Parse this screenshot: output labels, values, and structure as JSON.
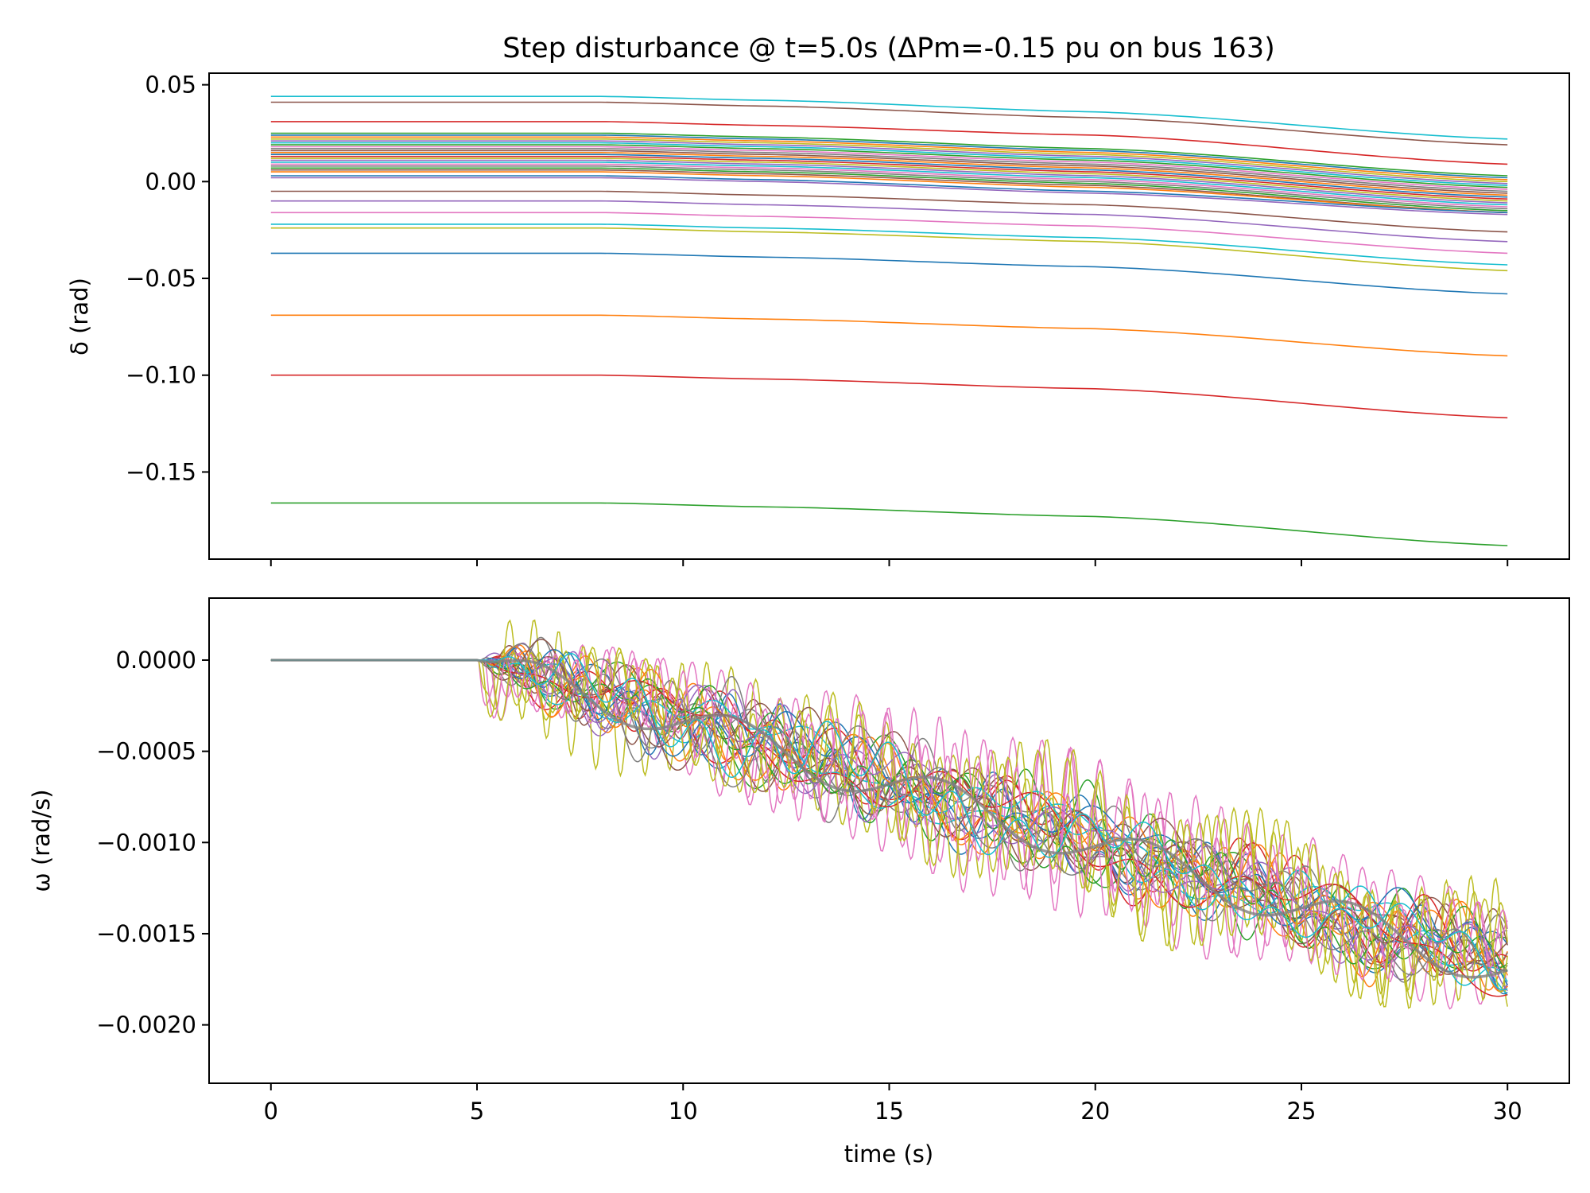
{
  "figure": {
    "title": "Step disturbance @ t=5.0s  (ΔPm=-0.15 pu on bus 163)"
  },
  "colors": [
    "#1f77b4",
    "#ff7f0e",
    "#2ca02c",
    "#d62728",
    "#9467bd",
    "#8c564b",
    "#e377c2",
    "#7f7f7f",
    "#bcbd22",
    "#17becf"
  ],
  "chart_data": [
    {
      "type": "line",
      "panel": "top",
      "ylabel": "δ (rad)",
      "xlabel": "",
      "xlim": [
        -1.5,
        31.5
      ],
      "ylim": [
        -0.195,
        0.056
      ],
      "yticks": [
        0.05,
        0.0,
        -0.05,
        -0.1,
        -0.15
      ],
      "ytick_labels": [
        "0.05",
        "0.00",
        "−0.05",
        "−0.10",
        "−0.15"
      ],
      "xticks": [
        0,
        5,
        10,
        15,
        20,
        25,
        30
      ],
      "show_xtick_labels": false,
      "step_time": 5.0,
      "x": [
        0,
        8,
        12,
        20,
        30
      ],
      "series": [
        {
          "color": "#17becf",
          "values": [
            0.044,
            0.044,
            0.042,
            0.036,
            0.022
          ]
        },
        {
          "color": "#8c564b",
          "values": [
            0.041,
            0.041,
            0.039,
            0.033,
            0.019
          ]
        },
        {
          "color": "#d62728",
          "values": [
            0.031,
            0.031,
            0.029,
            0.024,
            0.009
          ]
        },
        {
          "color": "#2ca02c",
          "values": [
            0.025,
            0.025,
            0.023,
            0.017,
            0.003
          ]
        },
        {
          "color": "#1f77b4",
          "values": [
            0.024,
            0.024,
            0.022,
            0.016,
            0.002
          ]
        },
        {
          "color": "#ff7f0e",
          "values": [
            0.023,
            0.023,
            0.021,
            0.015,
            0.001
          ]
        },
        {
          "color": "#bcbd22",
          "values": [
            0.022,
            0.022,
            0.02,
            0.014,
            0.0
          ]
        },
        {
          "color": "#9467bd",
          "values": [
            0.021,
            0.021,
            0.019,
            0.013,
            -0.001
          ]
        },
        {
          "color": "#17becf",
          "values": [
            0.02,
            0.02,
            0.018,
            0.012,
            -0.002
          ]
        },
        {
          "color": "#2ca02c",
          "values": [
            0.019,
            0.019,
            0.017,
            0.011,
            -0.003
          ]
        },
        {
          "color": "#e377c2",
          "values": [
            0.018,
            0.018,
            0.016,
            0.01,
            -0.004
          ]
        },
        {
          "color": "#7f7f7f",
          "values": [
            0.017,
            0.017,
            0.015,
            0.009,
            -0.005
          ]
        },
        {
          "color": "#8c564b",
          "values": [
            0.016,
            0.016,
            0.014,
            0.008,
            -0.006
          ]
        },
        {
          "color": "#ff7f0e",
          "values": [
            0.015,
            0.015,
            0.013,
            0.007,
            -0.007
          ]
        },
        {
          "color": "#1f77b4",
          "values": [
            0.014,
            0.014,
            0.012,
            0.006,
            -0.008
          ]
        },
        {
          "color": "#d62728",
          "values": [
            0.013,
            0.013,
            0.011,
            0.005,
            -0.009
          ]
        },
        {
          "color": "#bcbd22",
          "values": [
            0.012,
            0.012,
            0.01,
            0.004,
            -0.01
          ]
        },
        {
          "color": "#9467bd",
          "values": [
            0.011,
            0.011,
            0.009,
            0.003,
            -0.011
          ]
        },
        {
          "color": "#17becf",
          "values": [
            0.01,
            0.01,
            0.008,
            0.002,
            -0.012
          ]
        },
        {
          "color": "#e377c2",
          "values": [
            0.009,
            0.009,
            0.007,
            0.001,
            -0.013
          ]
        },
        {
          "color": "#7f7f7f",
          "values": [
            0.008,
            0.008,
            0.006,
            0.0,
            -0.014
          ]
        },
        {
          "color": "#2ca02c",
          "values": [
            0.007,
            0.007,
            0.005,
            -0.001,
            -0.015
          ]
        },
        {
          "color": "#8c564b",
          "values": [
            0.006,
            0.006,
            0.004,
            -0.002,
            -0.016
          ]
        },
        {
          "color": "#ff7f0e",
          "values": [
            0.005,
            0.005,
            0.003,
            -0.003,
            -0.016
          ]
        },
        {
          "color": "#1f77b4",
          "values": [
            0.003,
            0.003,
            0.001,
            -0.005,
            -0.016
          ]
        },
        {
          "color": "#9467bd",
          "values": [
            0.002,
            0.002,
            0.0,
            -0.006,
            -0.017
          ]
        },
        {
          "color": "#8c564b",
          "values": [
            -0.005,
            -0.005,
            -0.007,
            -0.012,
            -0.026
          ]
        },
        {
          "color": "#9467bd",
          "values": [
            -0.01,
            -0.01,
            -0.012,
            -0.017,
            -0.031
          ]
        },
        {
          "color": "#e377c2",
          "values": [
            -0.016,
            -0.016,
            -0.018,
            -0.023,
            -0.037
          ]
        },
        {
          "color": "#17becf",
          "values": [
            -0.022,
            -0.022,
            -0.024,
            -0.029,
            -0.043
          ]
        },
        {
          "color": "#bcbd22",
          "values": [
            -0.024,
            -0.024,
            -0.026,
            -0.031,
            -0.046
          ]
        },
        {
          "color": "#1f77b4",
          "values": [
            -0.037,
            -0.037,
            -0.039,
            -0.044,
            -0.058
          ]
        },
        {
          "color": "#ff7f0e",
          "values": [
            -0.069,
            -0.069,
            -0.071,
            -0.076,
            -0.09
          ]
        },
        {
          "color": "#d62728",
          "values": [
            -0.1,
            -0.1,
            -0.102,
            -0.107,
            -0.122
          ]
        },
        {
          "color": "#2ca02c",
          "values": [
            -0.166,
            -0.166,
            -0.168,
            -0.173,
            -0.188
          ]
        }
      ]
    },
    {
      "type": "line",
      "panel": "bottom",
      "ylabel": "ω (rad/s)",
      "xlabel": "time (s)",
      "xlim": [
        -1.5,
        31.5
      ],
      "ylim": [
        -0.00232,
        0.00034
      ],
      "yticks": [
        0.0,
        -0.0005,
        -0.001,
        -0.0015,
        -0.002
      ],
      "ytick_labels": [
        "0.0000",
        "−0.0005",
        "−0.0010",
        "−0.0015",
        "−0.0020"
      ],
      "xticks": [
        0,
        5,
        10,
        15,
        20,
        25,
        30
      ],
      "xtick_labels": [
        "0",
        "5",
        "10",
        "15",
        "20",
        "25",
        "30"
      ],
      "step_time": 5.0,
      "end_value": -0.0017,
      "oscillating_series_count": 30,
      "representative_series": [
        {
          "color": "#1f77b4",
          "x": [
            0,
            5,
            10,
            15,
            20,
            25,
            30
          ],
          "values": [
            0.0,
            0.0,
            -0.00042,
            -0.00085,
            -0.00122,
            -0.00145,
            -0.00175
          ]
        },
        {
          "color": "#e377c2",
          "x": [
            0,
            5,
            10,
            15,
            20,
            25,
            30
          ],
          "values": [
            0.0,
            0.0,
            -0.0004,
            -0.0009,
            -0.00128,
            -0.0015,
            -0.0018
          ]
        },
        {
          "color": "#bcbd22",
          "x": [
            0,
            5,
            10,
            15,
            20,
            25,
            30
          ],
          "values": [
            0.0,
            0.0,
            -0.00035,
            -0.00082,
            -0.00118,
            -0.00142,
            -0.0019
          ]
        }
      ]
    }
  ]
}
